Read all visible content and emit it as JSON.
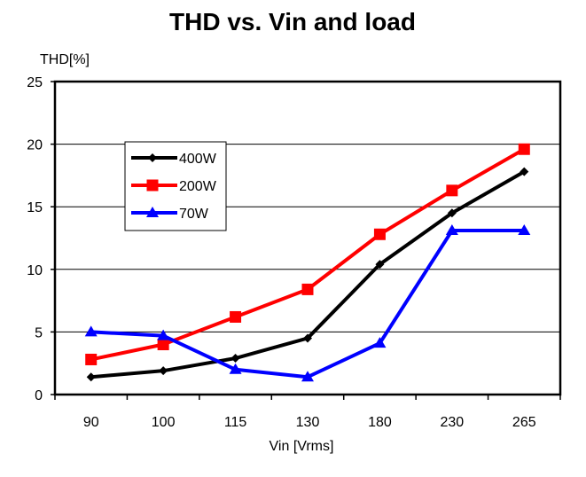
{
  "chart_data": {
    "type": "line",
    "title": "THD vs. Vin and load",
    "xlabel": "Vin [Vrms]",
    "ylabel": "THD[%]",
    "categories": [
      "90",
      "100",
      "115",
      "130",
      "180",
      "230",
      "265"
    ],
    "ylim": [
      0,
      25
    ],
    "yticks": [
      "0",
      "5",
      "10",
      "15",
      "20",
      "25"
    ],
    "grid": true,
    "legend_position": "top-left",
    "series": [
      {
        "name": "400W",
        "color": "#000000",
        "marker": "diamond",
        "values": [
          1.4,
          1.9,
          2.9,
          4.5,
          10.4,
          14.5,
          17.8
        ]
      },
      {
        "name": "200W",
        "color": "#ff0000",
        "marker": "square",
        "values": [
          2.8,
          4.0,
          6.2,
          8.4,
          12.8,
          16.3,
          19.6
        ]
      },
      {
        "name": "70W",
        "color": "#0000ff",
        "marker": "triangle",
        "values": [
          5.0,
          4.7,
          2.0,
          1.4,
          4.1,
          13.1,
          13.1
        ]
      }
    ]
  }
}
